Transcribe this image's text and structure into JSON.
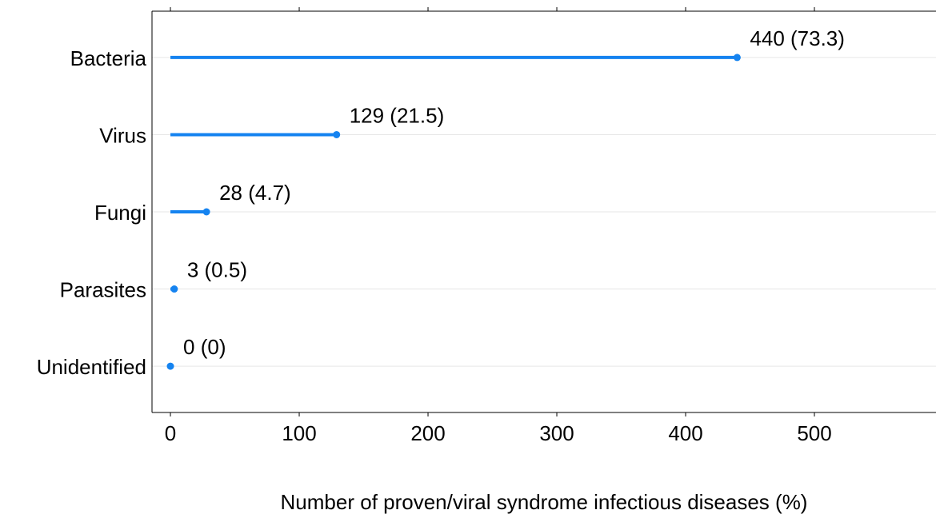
{
  "chart_data": {
    "type": "lollipop",
    "orientation": "horizontal",
    "x_label": "Number of proven/viral syndrome infectious diseases (%)",
    "categories": [
      "Bacteria",
      "Virus",
      "Fungi",
      "Parasites",
      "Unidentified"
    ],
    "values": [
      440,
      129,
      28,
      3,
      0
    ],
    "value_labels": [
      "440 (73.3)",
      "129 (21.5)",
      "28 (4.7)",
      "3 (0.5)",
      "0 (0)"
    ],
    "color": "#1583f0",
    "xlim": [
      -14.3,
      594.4
    ],
    "xticks": [
      0,
      100,
      200,
      300,
      400,
      500
    ],
    "grid": true
  }
}
